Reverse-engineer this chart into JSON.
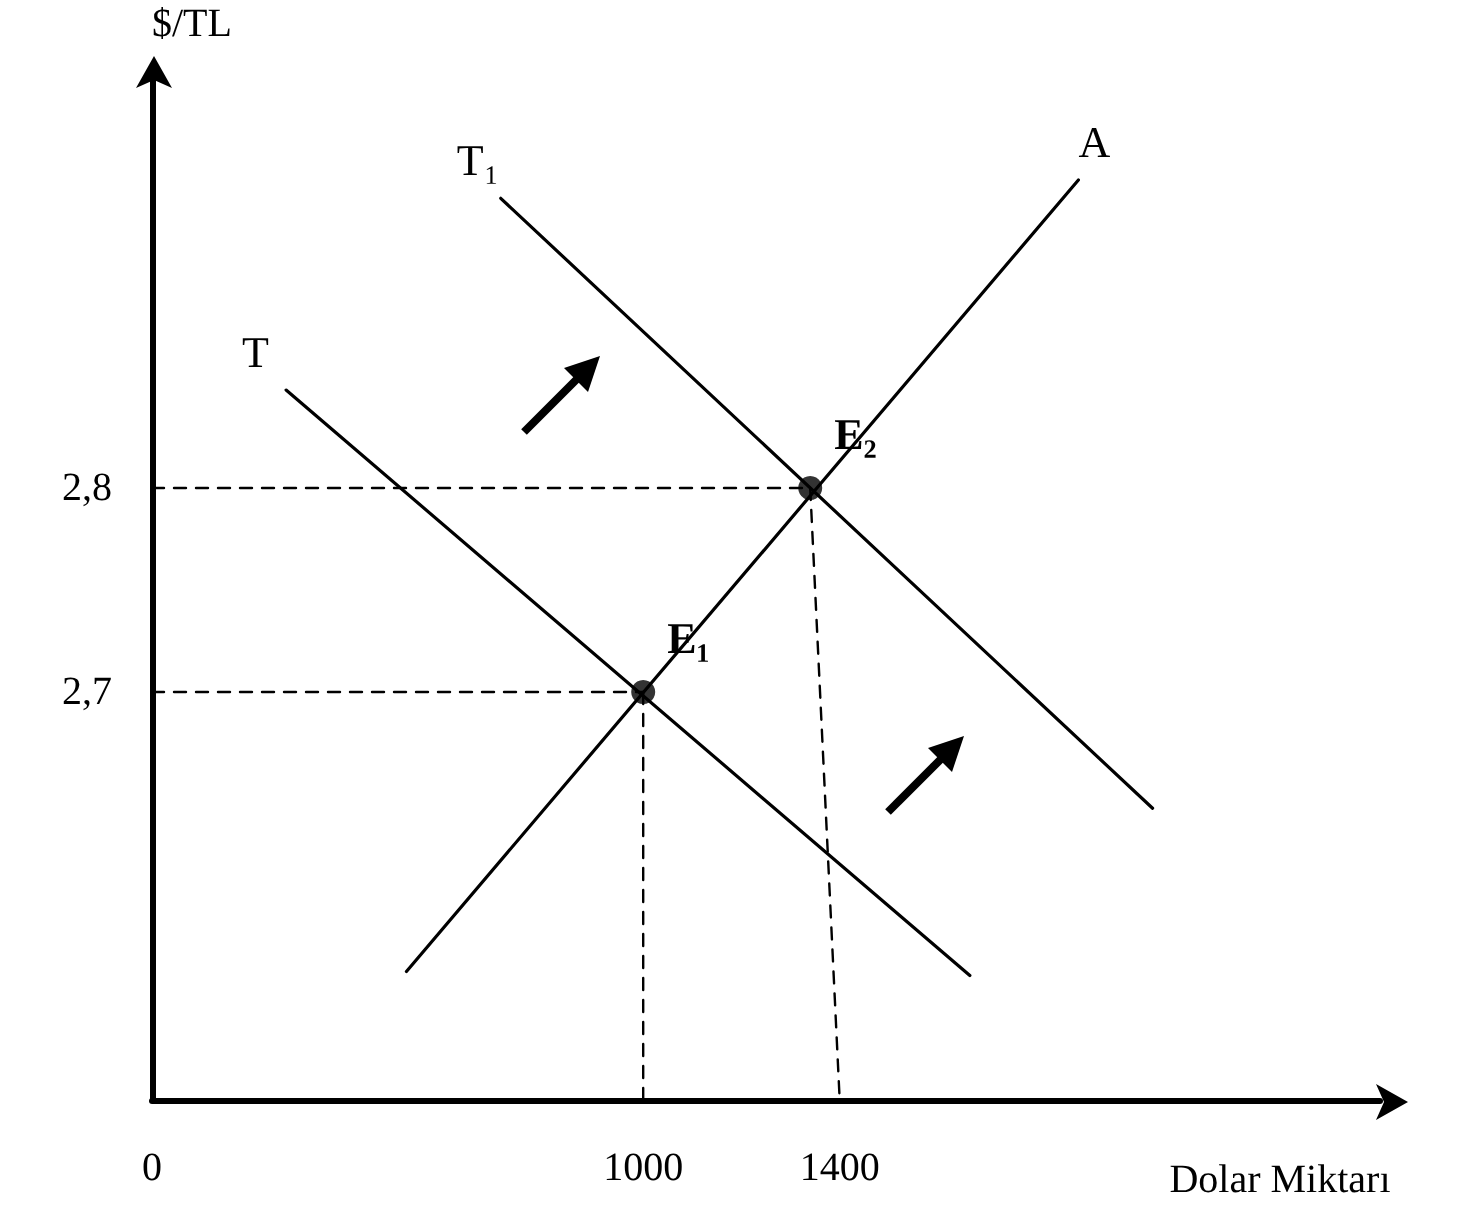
{
  "chart_data": {
    "type": "line",
    "xlabel": "Dolar Miktarı",
    "ylabel": "$/TL",
    "xlim": [
      0,
      2500
    ],
    "ylim": [
      2.5,
      3.0
    ],
    "xticks": [
      0,
      1000,
      1400
    ],
    "yticks": [
      {
        "value": 2.7,
        "label": "2,7"
      },
      {
        "value": 2.8,
        "label": "2,8"
      }
    ],
    "grid": false,
    "legend": false,
    "marker": "none",
    "series": [
      {
        "name": "T",
        "color": "#000000",
        "x": [
          273,
          1665
        ],
        "values": [
          2.848,
          2.561
        ]
      },
      {
        "name": "T₁",
        "color": "#000000",
        "x": [
          710,
          2037
        ],
        "values": [
          2.942,
          2.643
        ]
      },
      {
        "name": "A",
        "color": "#000000",
        "x": [
          518,
          1886
        ],
        "values": [
          2.563,
          2.951
        ]
      },
      {
        "color": "#000000",
        "line_style": "dashed",
        "x": [
          0,
          1340
        ],
        "values": [
          2.8,
          2.8
        ]
      },
      {
        "color": "#000000",
        "line_style": "dashed",
        "x": [
          0,
          1000
        ],
        "values": [
          2.7,
          2.7
        ]
      },
      {
        "color": "#000000",
        "line_style": "dashed",
        "x": [
          1000,
          1000
        ],
        "values": [
          2.7,
          2.5
        ]
      },
      {
        "color": "#000000",
        "line_style": "dashed",
        "x": [
          1340,
          1400
        ],
        "values": [
          2.8,
          2.5
        ]
      },
      {
        "type": "scatter",
        "marker": "circle",
        "color": "#000000",
        "x": [
          1000,
          1340
        ],
        "values": [
          2.7,
          2.8
        ]
      }
    ],
    "annotations": [
      {
        "text": "E₁",
        "x": 1000,
        "y": 2.7
      },
      {
        "text": "E₂",
        "x": 1340,
        "y": 2.8
      }
    ]
  }
}
